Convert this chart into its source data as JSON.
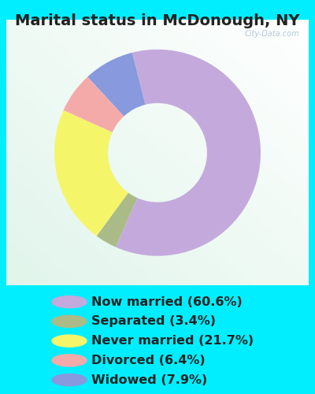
{
  "title": "Marital status in McDonough, NY",
  "slices": [
    60.6,
    3.4,
    21.7,
    6.4,
    7.9
  ],
  "colors": [
    "#C4AADC",
    "#AABB88",
    "#F5F56A",
    "#F5AAAA",
    "#8899DD"
  ],
  "labels": [
    "Now married (60.6%)",
    "Separated (3.4%)",
    "Never married (21.7%)",
    "Divorced (6.4%)",
    "Widowed (7.9%)"
  ],
  "legend_colors": [
    "#C4AADC",
    "#AABB88",
    "#F5F56A",
    "#F5AAAA",
    "#8899DD"
  ],
  "bg_cyan": "#00EEFF",
  "chart_box_color": "#E8F5EE",
  "title_fontsize": 14,
  "legend_fontsize": 11.5,
  "watermark": "City-Data.com",
  "donut_width": 0.52,
  "startangle": 104.22
}
